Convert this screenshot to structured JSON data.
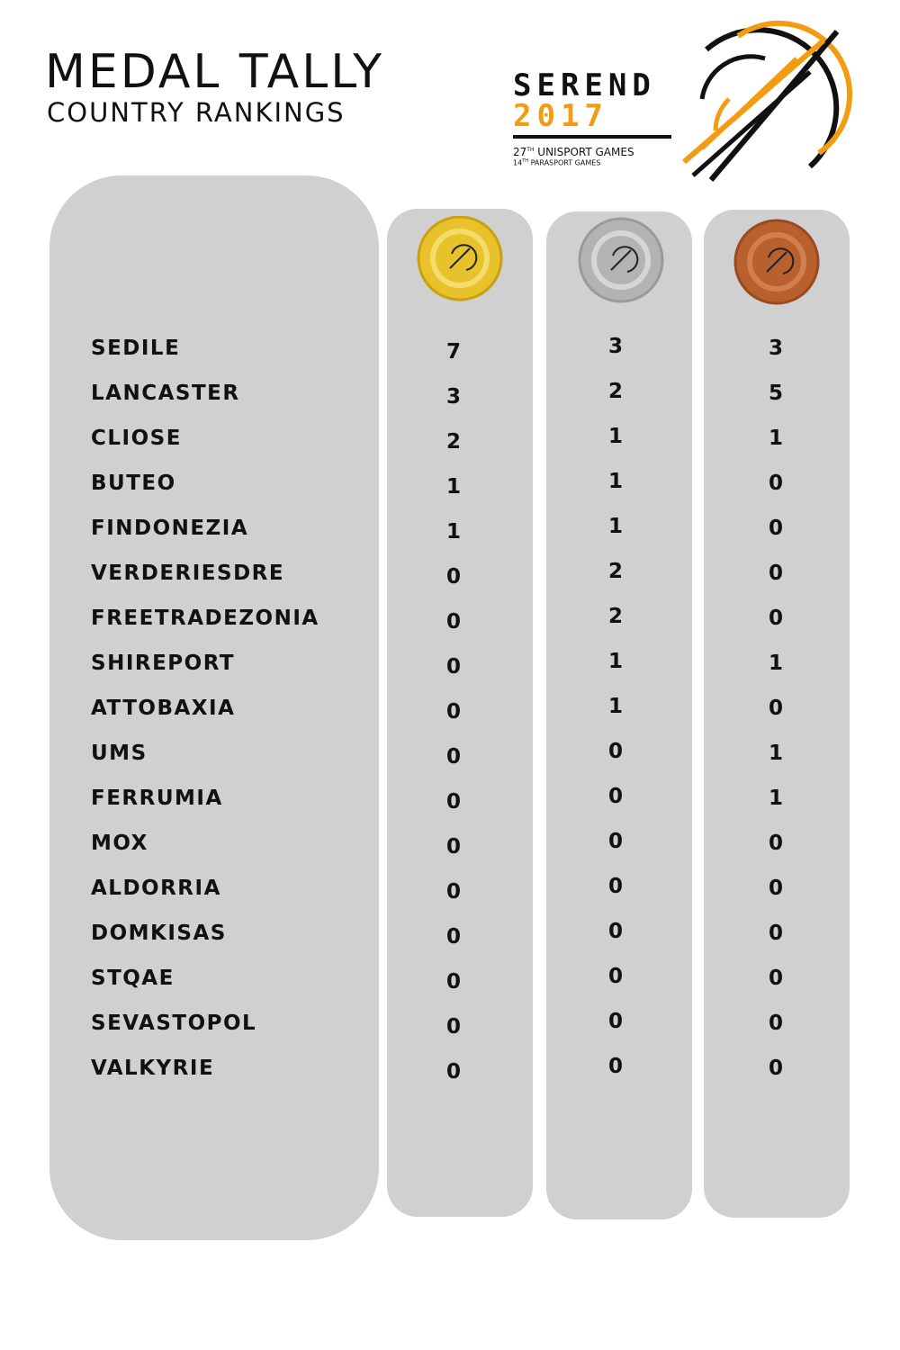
{
  "header": {
    "title": "MEDAL TALLY",
    "subtitle": "COUNTRY RANKINGS"
  },
  "logo": {
    "word1": "SEREND",
    "word2": "2017",
    "line1_number": "27",
    "line1_suffix": "TH",
    "line1_text": "UNISPORT GAMES",
    "line2_number": "14",
    "line2_suffix": "TH",
    "line2_text": "PARASPORT GAMES"
  },
  "table": {
    "rows": [
      [
        "SEDILE",
        7,
        3,
        3
      ],
      [
        "LANCASTER",
        3,
        2,
        5
      ],
      [
        "CLIOSE",
        2,
        1,
        1
      ],
      [
        "BUTEO",
        1,
        1,
        0
      ],
      [
        "FINDONEZIA",
        1,
        1,
        0
      ],
      [
        "VERDERIESDRE",
        0,
        2,
        0
      ],
      [
        "FREETRADEZONIA",
        0,
        2,
        0
      ],
      [
        "SHIREPORT",
        0,
        1,
        1
      ],
      [
        "ATTOBAXIA",
        0,
        1,
        0
      ],
      [
        "UMS",
        0,
        0,
        1
      ],
      [
        "FERRUMIA",
        0,
        0,
        1
      ],
      [
        "MOX",
        0,
        0,
        0
      ],
      [
        "ALDORRIA",
        0,
        0,
        0
      ],
      [
        "DOMKISAS",
        0,
        0,
        0
      ],
      [
        "STQAE",
        0,
        0,
        0
      ],
      [
        "SEVASTOPOL",
        0,
        0,
        0
      ],
      [
        "VALKYRIE",
        0,
        0,
        0
      ]
    ]
  }
}
